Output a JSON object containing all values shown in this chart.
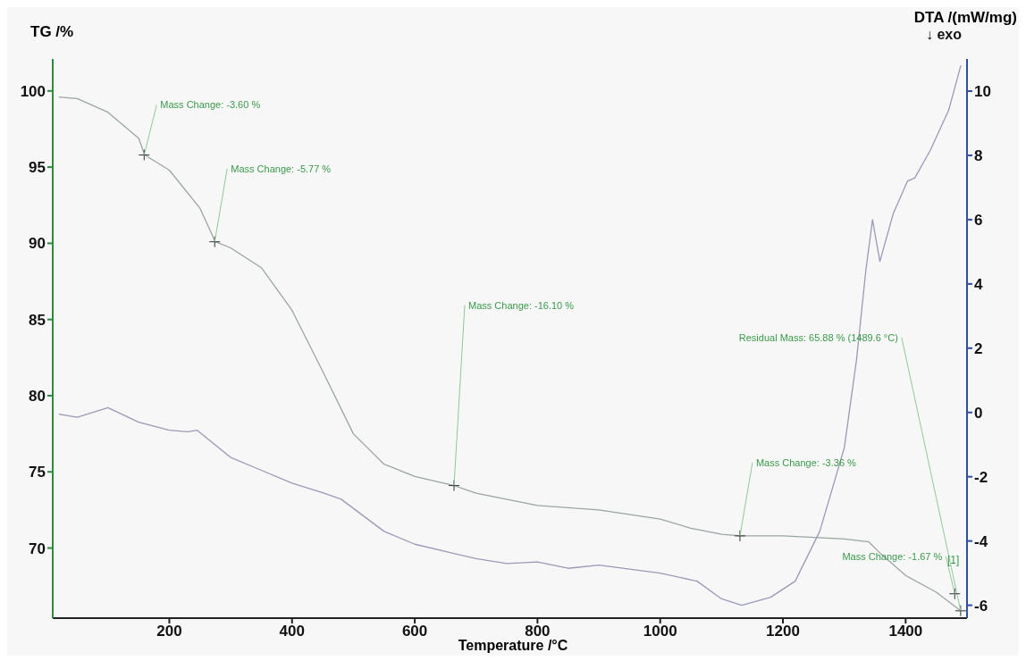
{
  "chart_data": {
    "type": "line",
    "xlabel": "Temperature /°C",
    "ylabel": "TG /%",
    "y2label": "DTA /(mW/mg)",
    "xlim": [
      10,
      1500
    ],
    "xticks": [
      200,
      400,
      600,
      800,
      1000,
      1200,
      1400
    ],
    "ylim": [
      65.4,
      102.1
    ],
    "yticks": [
      70,
      75,
      80,
      85,
      90,
      95,
      100
    ],
    "y2lim": [
      -6.4,
      11
    ],
    "y2ticks": [
      -6,
      -4,
      -2,
      0,
      2,
      4,
      6,
      8,
      10
    ],
    "series": [
      {
        "color": "#9aa6a4",
        "x": [
          20,
          50,
          100,
          150,
          160,
          200,
          250,
          275,
          300,
          350,
          400,
          450,
          500,
          550,
          600,
          664,
          700,
          800,
          900,
          1000,
          1050,
          1100,
          1130,
          1200,
          1300,
          1340,
          1360,
          1400,
          1450,
          1489.6
        ],
        "values": [
          99.6,
          99.5,
          98.6,
          96.9,
          95.8,
          94.8,
          92.3,
          90.1,
          89.7,
          88.4,
          85.6,
          81.6,
          77.5,
          75.5,
          74.7,
          74.1,
          73.6,
          72.8,
          72.5,
          71.9,
          71.3,
          70.9,
          70.8,
          70.8,
          70.6,
          70.4,
          69.6,
          68.2,
          67.1,
          65.88
        ]
      },
      {
        "color": "#9a9ab8",
        "axis": "y2",
        "x": [
          20,
          50,
          100,
          150,
          200,
          230,
          245,
          300,
          350,
          400,
          450,
          480,
          550,
          600,
          700,
          750,
          800,
          850,
          900,
          1000,
          1060,
          1100,
          1133,
          1180,
          1220,
          1260,
          1300,
          1320,
          1335,
          1346,
          1358,
          1380,
          1403,
          1415,
          1440,
          1470,
          1490
        ],
        "values": [
          -0.05,
          -0.15,
          0.15,
          -0.3,
          -0.55,
          -0.6,
          -0.55,
          -1.4,
          -1.8,
          -2.2,
          -2.5,
          -2.7,
          -3.7,
          -4.1,
          -4.55,
          -4.7,
          -4.65,
          -4.85,
          -4.75,
          -5.0,
          -5.25,
          -5.8,
          -6.0,
          -5.75,
          -5.25,
          -3.7,
          -1.1,
          1.65,
          4.4,
          6.0,
          4.7,
          6.2,
          7.2,
          7.3,
          8.15,
          9.4,
          10.8
        ]
      }
    ],
    "annotations": [
      {
        "text": "Mass Change: -3.60 %",
        "x": 159,
        "y": 95.8
      },
      {
        "text": "Mass Change: -5.77 %",
        "x": 274,
        "y": 90.1
      },
      {
        "text": "Mass Change: -16.10 %",
        "x": 664,
        "y": 74.1
      },
      {
        "text": "Mass Change: -3.36 %",
        "x": 1130,
        "y": 70.8
      },
      {
        "text": "Residual Mass: 65.88 % (1489.6 °C)",
        "x": 1489.6,
        "y": 65.88
      },
      {
        "text": "Mass Change: -1.67 %",
        "x": 1480,
        "y": 67.0
      },
      "[1]",
      "↓ exo"
    ]
  }
}
